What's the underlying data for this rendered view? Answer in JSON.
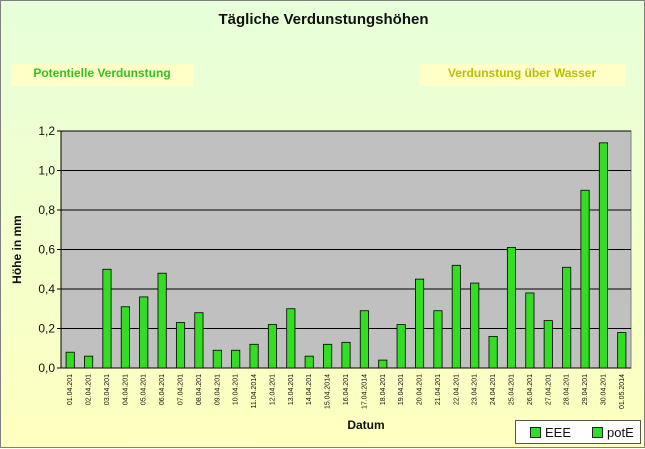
{
  "title": "Tägliche Verdunstungshöhen",
  "labels": {
    "left": "Potentielle Verdunstung",
    "right": "Verdunstung über Wasser"
  },
  "chart_data": {
    "type": "bar",
    "title": "Tägliche Verdunstungshöhen",
    "xlabel": "Datum",
    "ylabel": "Höhe in mm",
    "ylim": [
      0,
      1.2
    ],
    "yticks": [
      "0,0",
      "0,2",
      "0,4",
      "0,6",
      "0,8",
      "1,0",
      "1,2"
    ],
    "grid": true,
    "legend_position": "bottom-right",
    "categories": [
      "01.04.201",
      "02.04.201",
      "03.04.201",
      "04.04.201",
      "05.04.201",
      "06.04.201",
      "07.04.201",
      "08.04.201",
      "09.04.201",
      "10.04.201",
      "11.04.2014",
      "12.04.201",
      "13.04.201",
      "14.04.201",
      "15.04.2014",
      "16.04.201",
      "17.04.2014",
      "18.04.201",
      "19.04.201",
      "20.04.201",
      "21.04.201",
      "22.04.201",
      "23.04.201",
      "24.04.201",
      "25.04.201",
      "26.04.201",
      "27.04.201",
      "28.04.201",
      "29.04.201",
      "30.04.201",
      "01.05.2014"
    ],
    "series": [
      {
        "name": "EEE",
        "color": "#33dd22",
        "values": [
          0,
          0,
          0,
          0,
          0,
          0,
          0,
          0,
          0,
          0,
          0,
          0,
          0,
          0,
          0,
          0,
          0,
          0,
          0,
          0,
          0,
          0,
          0,
          0,
          0,
          0,
          0,
          0,
          0,
          0,
          0
        ]
      },
      {
        "name": "potE",
        "color": "#33dd22",
        "values": [
          0.08,
          0.06,
          0.5,
          0.31,
          0.36,
          0.48,
          0.23,
          0.28,
          0.09,
          0.09,
          0.12,
          0.22,
          0.3,
          0.06,
          0.12,
          0.13,
          0.29,
          0.04,
          0.22,
          0.45,
          0.29,
          0.52,
          0.43,
          0.16,
          0.61,
          0.38,
          0.24,
          0.51,
          0.9,
          1.14,
          0.18
        ]
      }
    ]
  },
  "colors": {
    "plot_background": "#c0c0c0",
    "bar": "#33dd22",
    "left_label_text": "#2fc321",
    "right_label_text": "#b5c200"
  }
}
